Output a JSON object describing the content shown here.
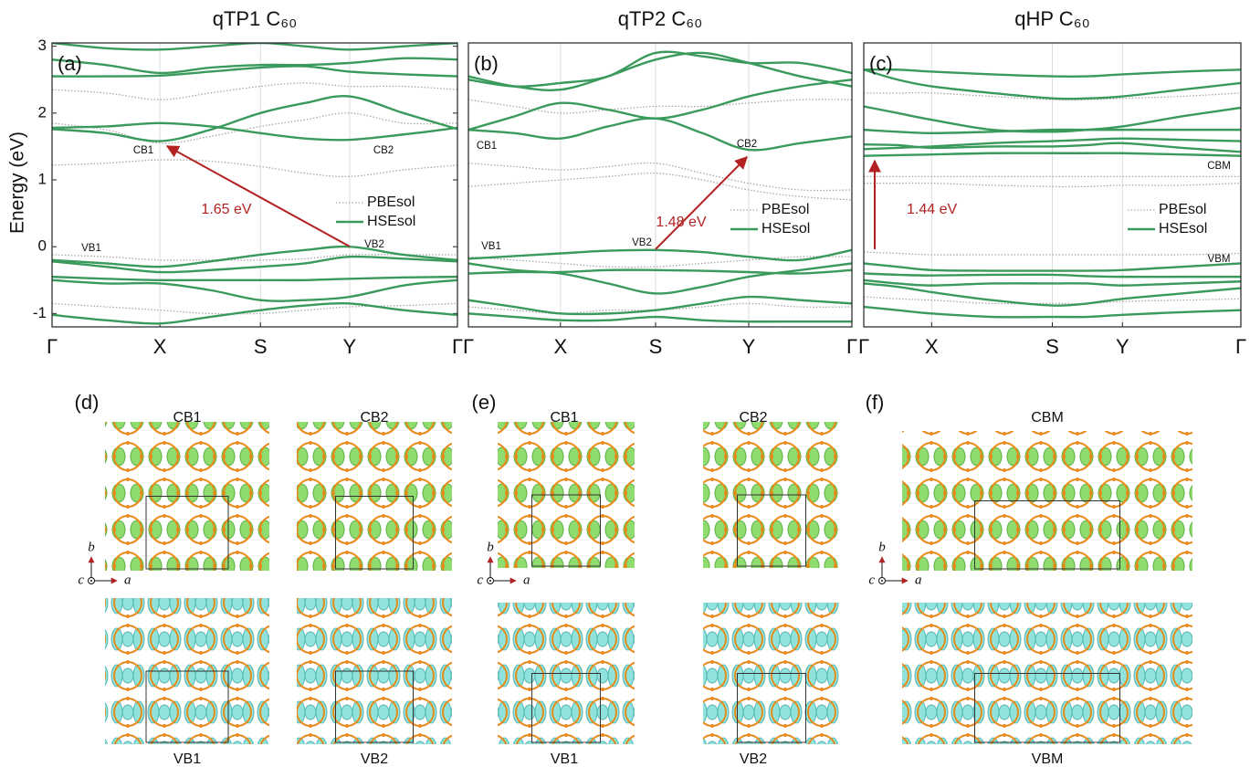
{
  "chart_data": [
    {
      "type": "line",
      "title": "qTP1 C₆₀",
      "y_label": "Energy (eV)",
      "panel_label": "(a)",
      "annotations": [
        "CB1",
        "CB2",
        "VB1",
        "VB2"
      ],
      "gap_label": "1.65 eV",
      "x": [
        0,
        0.133,
        0.266,
        0.39,
        0.514,
        0.624,
        0.734,
        0.867,
        1
      ],
      "xlim": [
        0,
        1
      ],
      "xticks": [
        {
          "value": 0,
          "label": "Γ"
        },
        {
          "value": 0.266,
          "label": "X"
        },
        {
          "value": 0.514,
          "label": "S"
        },
        {
          "value": 0.734,
          "label": "Y"
        },
        {
          "value": 1,
          "label": "Γ"
        }
      ],
      "ylim": [
        -1.2,
        3.05
      ],
      "yticks": [
        -1,
        0,
        1,
        2,
        3
      ],
      "grid": true,
      "legend": "center right",
      "series": [
        {
          "name": "PBEsol",
          "color": "#a8a8a8",
          "style": "dotted",
          "bands": [
            [
              1.22,
              1.25,
              1.3,
              1.28,
              1.2,
              1.1,
              1.05,
              1.15,
              1.22
            ],
            [
              1.85,
              1.75,
              1.55,
              1.65,
              1.8,
              1.9,
              2.0,
              1.85,
              1.85
            ],
            [
              2.35,
              2.3,
              2.2,
              2.3,
              2.4,
              2.45,
              2.4,
              2.4,
              2.35
            ],
            [
              -0.12,
              -0.15,
              -0.2,
              -0.2,
              -0.2,
              -0.18,
              -0.12,
              -0.12,
              -0.12
            ],
            [
              -0.85,
              -0.9,
              -0.95,
              -1.0,
              -1.0,
              -0.95,
              -0.9,
              -0.88,
              -0.85
            ]
          ]
        },
        {
          "name": "HSEsol",
          "color": "#3a9a5c",
          "style": "solid",
          "bands": [
            [
              1.78,
              1.8,
              1.85,
              1.8,
              1.7,
              1.62,
              1.6,
              1.68,
              1.78
            ],
            [
              1.76,
              1.7,
              1.58,
              1.75,
              2.0,
              2.15,
              2.25,
              2.0,
              1.76
            ],
            [
              2.55,
              2.55,
              2.56,
              2.62,
              2.68,
              2.7,
              2.62,
              2.58,
              2.55
            ],
            [
              2.8,
              2.72,
              2.6,
              2.68,
              2.72,
              2.72,
              2.75,
              2.82,
              2.8
            ],
            [
              3.05,
              2.97,
              2.95,
              3.0,
              3.05,
              3.0,
              2.95,
              3.0,
              3.05
            ],
            [
              -0.2,
              -0.25,
              -0.3,
              -0.22,
              -0.12,
              -0.05,
              0.0,
              -0.12,
              -0.2
            ],
            [
              -0.22,
              -0.3,
              -0.38,
              -0.35,
              -0.3,
              -0.25,
              -0.15,
              -0.18,
              -0.22
            ],
            [
              -0.45,
              -0.48,
              -0.5,
              -0.5,
              -0.5,
              -0.5,
              -0.48,
              -0.46,
              -0.45
            ],
            [
              -0.5,
              -0.55,
              -0.55,
              -0.65,
              -0.8,
              -0.8,
              -0.75,
              -0.58,
              -0.5
            ],
            [
              -1.02,
              -1.1,
              -1.15,
              -1.05,
              -0.95,
              -0.88,
              -0.85,
              -0.95,
              -1.02
            ]
          ]
        }
      ]
    },
    {
      "type": "line",
      "title": "qTP2 C₆₀",
      "panel_label": "(b)",
      "annotations": [
        "CB1",
        "CB2",
        "VB1",
        "VB2"
      ],
      "gap_label": "1.48 eV",
      "x": [
        0,
        0.12,
        0.24,
        0.364,
        0.488,
        0.61,
        0.731,
        0.865,
        1
      ],
      "xlim": [
        0,
        1
      ],
      "xticks": [
        {
          "value": 0,
          "label": "Γ"
        },
        {
          "value": 0.24,
          "label": "X"
        },
        {
          "value": 0.488,
          "label": "S"
        },
        {
          "value": 0.731,
          "label": "Y"
        },
        {
          "value": 1,
          "label": "Γ"
        }
      ],
      "ylim": [
        -1.2,
        3.05
      ],
      "grid": true,
      "legend": "center right",
      "series": [
        {
          "name": "PBEsol",
          "color": "#a8a8a8",
          "style": "dotted",
          "bands": [
            [
              1.25,
              1.2,
              1.15,
              1.2,
              1.25,
              1.1,
              0.95,
              0.85,
              0.85
            ],
            [
              0.9,
              0.95,
              1.0,
              1.05,
              1.1,
              1.0,
              0.85,
              0.75,
              0.7
            ],
            [
              2.2,
              2.1,
              2.0,
              2.05,
              2.1,
              2.1,
              2.15,
              2.2,
              2.2
            ],
            [
              -0.15,
              -0.2,
              -0.25,
              -0.3,
              -0.3,
              -0.25,
              -0.2,
              -0.15,
              -0.15
            ],
            [
              -0.9,
              -0.95,
              -1.0,
              -0.95,
              -0.95,
              -0.9,
              -0.85,
              -0.9,
              -0.9
            ]
          ]
        },
        {
          "name": "HSEsol",
          "color": "#3a9a5c",
          "style": "solid",
          "bands": [
            [
              1.75,
              1.7,
              1.62,
              1.8,
              1.92,
              1.7,
              1.45,
              1.55,
              1.65
            ],
            [
              1.75,
              1.95,
              2.15,
              2.05,
              1.92,
              2.05,
              2.25,
              2.4,
              2.5
            ],
            [
              2.55,
              2.4,
              2.35,
              2.55,
              2.8,
              2.9,
              2.75,
              2.55,
              2.4
            ],
            [
              2.5,
              2.4,
              2.45,
              2.55,
              2.9,
              2.85,
              2.75,
              2.75,
              2.6
            ],
            [
              -0.18,
              -0.14,
              -0.1,
              -0.06,
              -0.05,
              -0.08,
              -0.15,
              -0.2,
              -0.05
            ],
            [
              -0.25,
              -0.35,
              -0.4,
              -0.55,
              -0.7,
              -0.6,
              -0.45,
              -0.35,
              -0.25
            ],
            [
              -0.4,
              -0.38,
              -0.38,
              -0.35,
              -0.35,
              -0.36,
              -0.38,
              -0.4,
              -0.35
            ],
            [
              -0.8,
              -0.9,
              -1.0,
              -1.0,
              -0.95,
              -0.85,
              -0.75,
              -0.8,
              -0.85
            ],
            [
              -1.0,
              -1.05,
              -1.1,
              -1.1,
              -1.05,
              -1.1,
              -1.12,
              -1.12,
              -1.12
            ]
          ]
        }
      ]
    },
    {
      "type": "line",
      "title": "qHP C₆₀",
      "panel_label": "(c)",
      "annotations": [
        "CBM",
        "VBM"
      ],
      "gap_label": "1.44 eV",
      "x": [
        0,
        0.09,
        0.18,
        0.34,
        0.5,
        0.593,
        0.686,
        0.843,
        1
      ],
      "xlim": [
        0,
        1
      ],
      "xticks": [
        {
          "value": 0,
          "label": "Γ"
        },
        {
          "value": 0.18,
          "label": "X"
        },
        {
          "value": 0.5,
          "label": "S"
        },
        {
          "value": 0.686,
          "label": "Y"
        },
        {
          "value": 1,
          "label": "Γ"
        }
      ],
      "ylim": [
        -1.2,
        3.05
      ],
      "grid": true,
      "legend": "center right",
      "series": [
        {
          "name": "PBEsol",
          "color": "#a8a8a8",
          "style": "dotted",
          "bands": [
            [
              0.95,
              0.95,
              0.95,
              0.92,
              0.9,
              0.9,
              0.92,
              0.92,
              0.95
            ],
            [
              1.05,
              1.05,
              1.05,
              1.05,
              1.05,
              1.05,
              1.05,
              1.05,
              1.05
            ],
            [
              2.3,
              2.3,
              2.3,
              2.25,
              2.2,
              2.2,
              2.22,
              2.25,
              2.3
            ],
            [
              -0.08,
              -0.1,
              -0.12,
              -0.12,
              -0.12,
              -0.12,
              -0.12,
              -0.12,
              -0.1
            ],
            [
              -0.75,
              -0.78,
              -0.8,
              -0.85,
              -0.85,
              -0.85,
              -0.82,
              -0.8,
              -0.78
            ]
          ]
        },
        {
          "name": "HSEsol",
          "color": "#3a9a5c",
          "style": "solid",
          "bands": [
            [
              1.36,
              1.37,
              1.38,
              1.4,
              1.4,
              1.4,
              1.4,
              1.38,
              1.36
            ],
            [
              1.46,
              1.48,
              1.5,
              1.55,
              1.58,
              1.6,
              1.62,
              1.6,
              1.58
            ],
            [
              1.53,
              1.52,
              1.48,
              1.5,
              1.5,
              1.52,
              1.55,
              1.48,
              1.42
            ],
            [
              1.75,
              1.72,
              1.7,
              1.72,
              1.75,
              1.75,
              1.75,
              1.75,
              1.75
            ],
            [
              2.1,
              2.0,
              1.9,
              1.75,
              1.72,
              1.75,
              1.8,
              1.95,
              2.08
            ],
            [
              2.65,
              2.5,
              2.4,
              2.3,
              2.22,
              2.22,
              2.25,
              2.35,
              2.45
            ],
            [
              2.65,
              2.65,
              2.62,
              2.58,
              2.55,
              2.55,
              2.58,
              2.62,
              2.65
            ],
            [
              -0.25,
              -0.3,
              -0.35,
              -0.36,
              -0.36,
              -0.36,
              -0.35,
              -0.3,
              -0.25
            ],
            [
              -0.4,
              -0.42,
              -0.43,
              -0.42,
              -0.42,
              -0.44,
              -0.45,
              -0.45,
              -0.45
            ],
            [
              -0.5,
              -0.55,
              -0.58,
              -0.55,
              -0.55,
              -0.55,
              -0.58,
              -0.55,
              -0.52
            ],
            [
              -0.55,
              -0.6,
              -0.68,
              -0.8,
              -0.88,
              -0.85,
              -0.78,
              -0.7,
              -0.62
            ],
            [
              -0.9,
              -0.95,
              -1.0,
              -1.05,
              -1.05,
              -1.05,
              -1.02,
              -0.98,
              -0.95
            ]
          ]
        }
      ]
    }
  ],
  "structures": [
    {
      "label": "(d)",
      "images": [
        "CB1",
        "CB2",
        "VB1",
        "VB2"
      ],
      "axes": [
        "b",
        "c",
        "a"
      ]
    },
    {
      "label": "(e)",
      "images": [
        "CB1",
        "CB2",
        "VB1",
        "VB2"
      ],
      "axes": [
        "b",
        "c",
        "a"
      ]
    },
    {
      "label": "(f)",
      "images": [
        "CBM",
        "VBM"
      ],
      "axes": [
        "b",
        "c",
        "a"
      ]
    }
  ]
}
